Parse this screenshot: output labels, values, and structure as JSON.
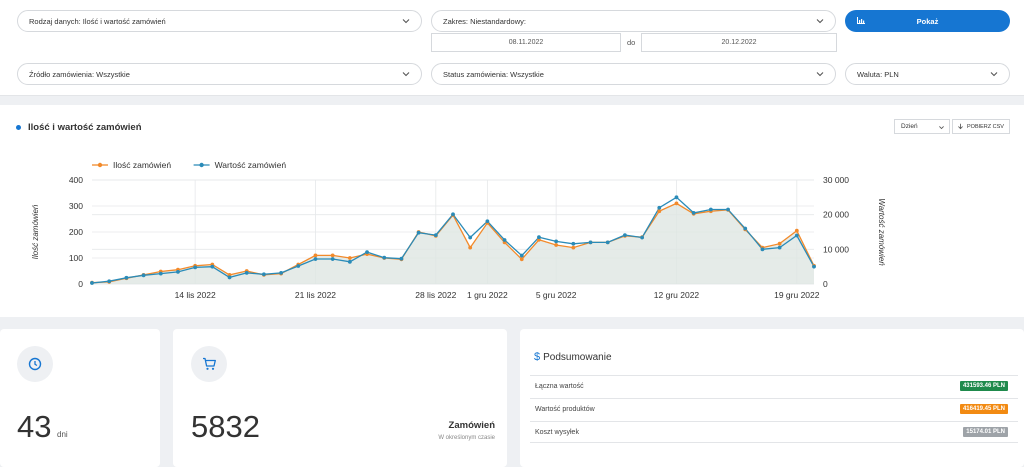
{
  "filters": {
    "data_type": "Rodzaj danych: Ilość i wartość zamówień",
    "range": "Zakres: Niestandardowy:",
    "date_from": "08.11.2022",
    "date_sep": "do",
    "date_to": "20.12.2022",
    "show_button": "Pokaż",
    "source": "Źródło zamówienia: Wszystkie",
    "status": "Status zamówienia: Wszystkie",
    "currency": "Waluta: PLN"
  },
  "chart_card": {
    "title": "Ilość i wartość zamówień",
    "granularity": "Dzień",
    "csv_button": "POBIERZ CSV"
  },
  "chart_data": {
    "type": "line",
    "x": [
      "2022-11-08",
      "2022-11-09",
      "2022-11-10",
      "2022-11-11",
      "2022-11-12",
      "2022-11-13",
      "2022-11-14",
      "2022-11-15",
      "2022-11-16",
      "2022-11-17",
      "2022-11-18",
      "2022-11-19",
      "2022-11-20",
      "2022-11-21",
      "2022-11-22",
      "2022-11-23",
      "2022-11-24",
      "2022-11-25",
      "2022-11-26",
      "2022-11-27",
      "2022-11-28",
      "2022-11-29",
      "2022-11-30",
      "2022-12-01",
      "2022-12-02",
      "2022-12-03",
      "2022-12-04",
      "2022-12-05",
      "2022-12-06",
      "2022-12-07",
      "2022-12-08",
      "2022-12-09",
      "2022-12-10",
      "2022-12-11",
      "2022-12-12",
      "2022-12-13",
      "2022-12-14",
      "2022-12-15",
      "2022-12-16",
      "2022-12-17",
      "2022-12-18",
      "2022-12-19",
      "2022-12-20"
    ],
    "series": [
      {
        "name": "Ilość zamówień",
        "axis": "left",
        "color": "#f28a2b",
        "values": [
          5,
          8,
          22,
          35,
          48,
          55,
          70,
          75,
          35,
          50,
          35,
          40,
          75,
          110,
          110,
          100,
          115,
          100,
          95,
          200,
          185,
          265,
          140,
          235,
          160,
          95,
          170,
          150,
          140,
          160,
          160,
          185,
          180,
          280,
          310,
          270,
          280,
          285,
          210,
          140,
          155,
          205,
          70
        ]
      },
      {
        "name": "Wartość zamówień",
        "axis": "right",
        "color": "#2a8bb8",
        "values": [
          300,
          800,
          1800,
          2500,
          3000,
          3500,
          4800,
          5000,
          1900,
          3200,
          2800,
          3200,
          5200,
          7200,
          7200,
          6400,
          9200,
          7600,
          7300,
          14800,
          14100,
          20100,
          13400,
          18100,
          12700,
          8200,
          13500,
          12300,
          11600,
          12000,
          12000,
          14100,
          13400,
          22000,
          25000,
          20500,
          21500,
          21500,
          16000,
          10000,
          10500,
          14000,
          5000
        ]
      }
    ],
    "ylabel_left": "Ilość zamówień",
    "ylabel_right": "Wartość zamówień",
    "ylim_left": [
      0,
      400
    ],
    "ylim_right": [
      0,
      30000
    ],
    "yticks_left": [
      "0",
      "100",
      "200",
      "300",
      "400"
    ],
    "yticks_right": [
      "0",
      "10 000",
      "20 000",
      "30 000"
    ],
    "xtick_labels": [
      {
        "date": "2022-11-14",
        "label": "14 lis 2022"
      },
      {
        "date": "2022-11-21",
        "label": "21 lis 2022"
      },
      {
        "date": "2022-11-28",
        "label": "28 lis 2022"
      },
      {
        "date": "2022-12-01",
        "label": "1 gru 2022"
      },
      {
        "date": "2022-12-05",
        "label": "5 gru 2022"
      },
      {
        "date": "2022-12-12",
        "label": "12 gru 2022"
      },
      {
        "date": "2022-12-19",
        "label": "19 gru 2022"
      }
    ],
    "legend": "top-left",
    "grid": true
  },
  "stats": {
    "days_value": "43",
    "days_unit": "dni",
    "orders_value": "5832",
    "orders_label": "Zamówień",
    "orders_sub": "W określonym czasie"
  },
  "summary": {
    "title": "Podsumowanie",
    "rows": [
      {
        "label": "Łączna wartość",
        "value": "431593.46 PLN",
        "color": "#1f8a4c"
      },
      {
        "label": "Wartość produktów",
        "value": "416419.45 PLN",
        "color": "#f28a12"
      },
      {
        "label": "Koszt wysyłek",
        "value": "15174.01 PLN",
        "color": "#9ea3a8"
      }
    ]
  },
  "colors": {
    "accent": "#1676d2"
  }
}
